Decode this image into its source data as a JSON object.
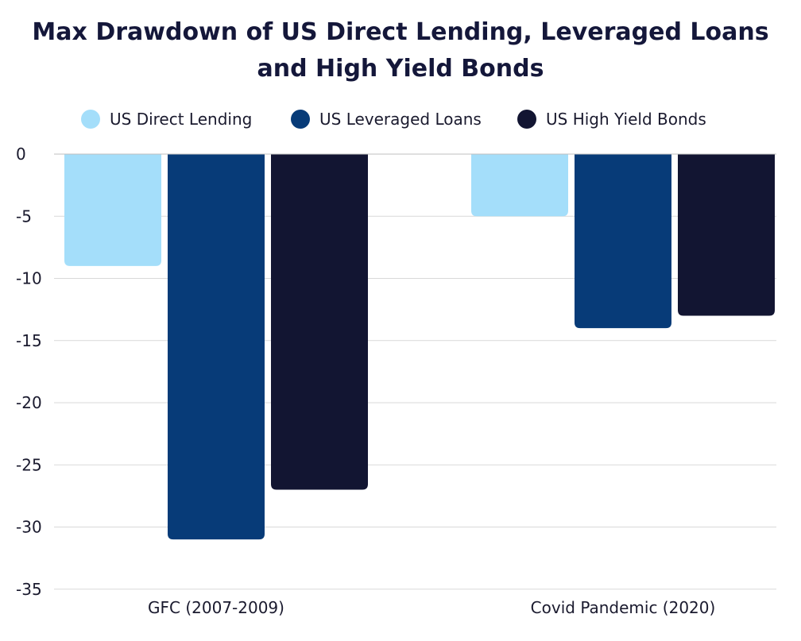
{
  "chart_data": {
    "type": "bar",
    "title_line1": "Max Drawdown of US Direct Lending, Leveraged Loans",
    "title_line2": "and High Yield Bonds",
    "categories": [
      "GFC (2007-2009)",
      "Covid Pandemic (2020)"
    ],
    "series": [
      {
        "name": "US Direct Lending",
        "color": "#a4defa",
        "values": [
          -9,
          -5
        ]
      },
      {
        "name": "US Leveraged Loans",
        "color": "#073b78",
        "values": [
          -31,
          -14
        ]
      },
      {
        "name": "US High Yield Bonds",
        "color": "#121532",
        "values": [
          -27,
          -13
        ]
      }
    ],
    "ylim": [
      -35,
      0
    ],
    "yticks": [
      0,
      -5,
      -10,
      -15,
      -20,
      -25,
      -30,
      -35
    ],
    "ytick_labels": [
      "0",
      "-5",
      "-10",
      "-15",
      "-20",
      "-25",
      "-30",
      "-35"
    ],
    "grid": true,
    "legend_position": "top"
  }
}
